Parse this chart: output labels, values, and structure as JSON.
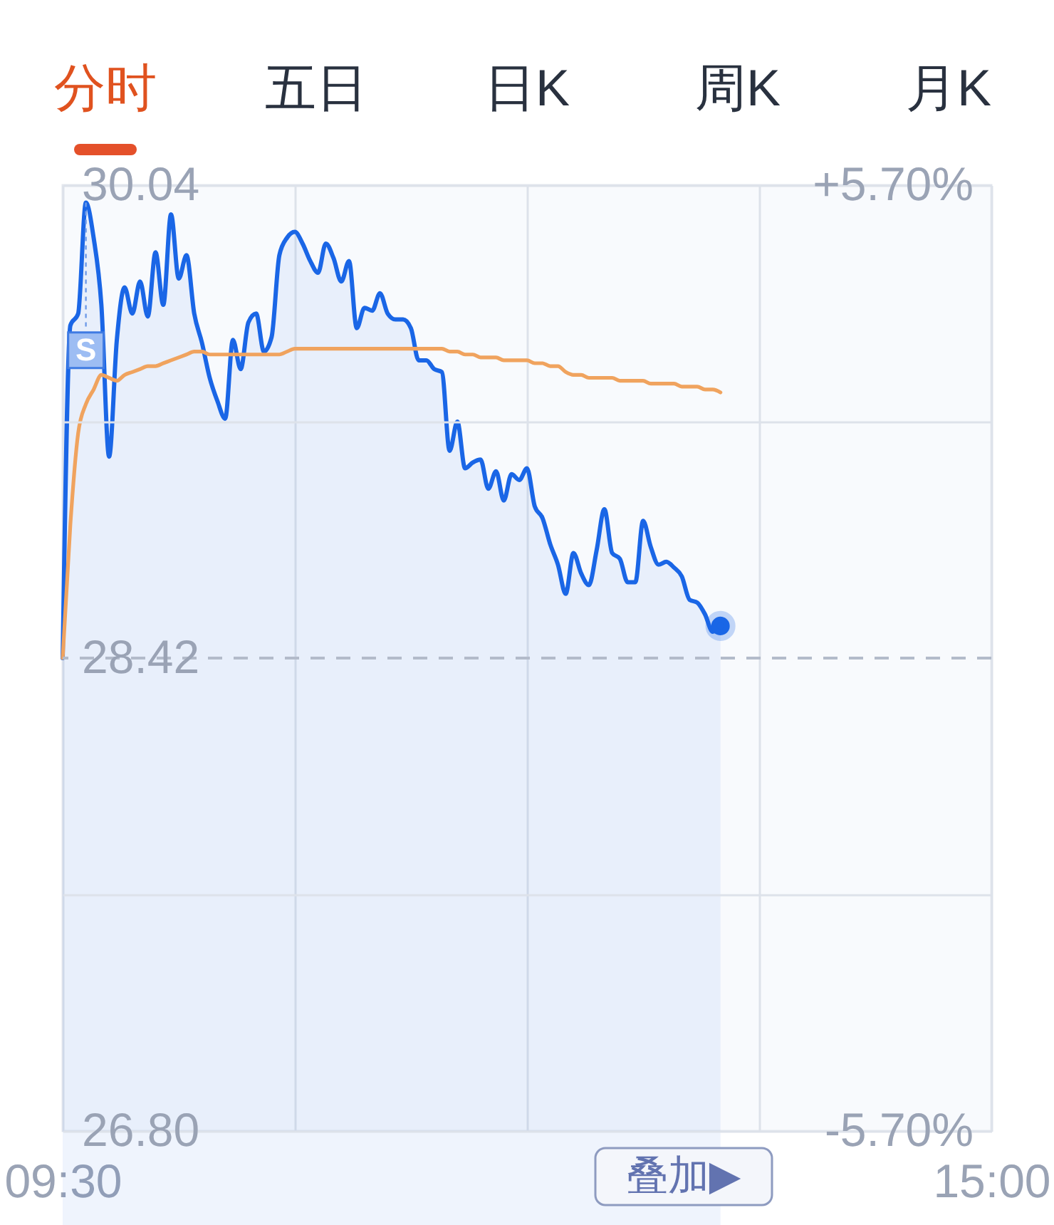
{
  "chart_data": [
    {
      "type": "other",
      "annotations": [
        "分时",
        "五日",
        "日K",
        "周K",
        "月K"
      ]
    },
    {
      "type": "area",
      "categories": [
        "09:30",
        null,
        null,
        null,
        null,
        null,
        null,
        null,
        null,
        null,
        null,
        null,
        null,
        null,
        null,
        null,
        null,
        null,
        null,
        null,
        null,
        null,
        null,
        null,
        null,
        null,
        null,
        null,
        null,
        null,
        null,
        null,
        null,
        null,
        null,
        null,
        null,
        null,
        null,
        null,
        null,
        null,
        null,
        null,
        null,
        null,
        null,
        null,
        null,
        null,
        null,
        null,
        null,
        null,
        null,
        null,
        null,
        null,
        null,
        null,
        null,
        null,
        null,
        null,
        null,
        null,
        null,
        null,
        null,
        null,
        null,
        null,
        null,
        null,
        null,
        null,
        null,
        null,
        null,
        null,
        null,
        null,
        null,
        null,
        null,
        null,
        null,
        null,
        null,
        null,
        null,
        null,
        null,
        null,
        null,
        null,
        null,
        null,
        null,
        null,
        null,
        null,
        null,
        null,
        null,
        null,
        null,
        null,
        null,
        null,
        null,
        null,
        null,
        null,
        null,
        null,
        null,
        null,
        null,
        null,
        "15:00"
      ],
      "series": [
        {
          "type": "area",
          "color": "#1a66e6",
          "values": [
            28.42,
            29.56,
            29.6,
            29.98,
            29.86,
            29.63,
            29.11,
            29.51,
            29.69,
            29.6,
            29.71,
            29.59,
            29.81,
            29.63,
            29.94,
            29.72,
            29.8,
            29.6,
            29.5,
            29.38,
            29.3,
            29.24,
            29.51,
            29.41,
            29.57,
            29.6,
            29.47,
            29.52,
            29.8,
            29.86,
            29.88,
            29.84,
            29.78,
            29.74,
            29.84,
            29.79,
            29.71,
            29.78,
            29.55,
            29.62,
            29.61,
            29.67,
            29.6,
            29.58,
            29.58,
            29.55,
            29.44,
            29.44,
            29.41,
            29.4,
            29.13,
            29.23,
            29.07,
            29.09,
            29.1,
            29.0,
            29.06,
            28.96,
            29.05,
            29.03,
            29.07,
            28.94,
            28.9,
            28.81,
            28.74,
            28.64,
            28.78,
            28.71,
            28.67,
            28.79,
            28.93,
            28.78,
            28.76,
            28.68,
            28.68,
            28.89,
            28.8,
            28.74,
            28.75,
            28.73,
            28.7,
            28.62,
            28.61,
            28.57,
            28.51,
            28.53,
            null,
            null,
            null,
            null,
            null,
            null,
            null,
            null,
            null,
            null,
            null,
            null,
            null,
            null,
            null,
            null,
            null,
            null,
            null,
            null,
            null,
            null,
            null,
            null,
            null,
            null,
            null,
            null,
            null,
            null,
            null,
            null,
            null,
            null,
            null
          ]
        },
        {
          "type": "line",
          "color": "#f0a35e",
          "values": [
            28.42,
            28.88,
            29.19,
            29.29,
            29.34,
            29.39,
            29.38,
            29.37,
            29.39,
            29.4,
            29.41,
            29.42,
            29.42,
            29.43,
            29.44,
            29.45,
            29.46,
            29.47,
            29.47,
            29.46,
            29.46,
            29.46,
            29.46,
            29.46,
            29.46,
            29.46,
            29.46,
            29.46,
            29.46,
            29.47,
            29.48,
            29.48,
            29.48,
            29.48,
            29.48,
            29.48,
            29.48,
            29.48,
            29.48,
            29.48,
            29.48,
            29.48,
            29.48,
            29.48,
            29.48,
            29.48,
            29.48,
            29.48,
            29.48,
            29.48,
            29.47,
            29.47,
            29.46,
            29.46,
            29.45,
            29.45,
            29.45,
            29.44,
            29.44,
            29.44,
            29.44,
            29.43,
            29.43,
            29.42,
            29.42,
            29.4,
            29.39,
            29.39,
            29.38,
            29.38,
            29.38,
            29.38,
            29.37,
            29.37,
            29.37,
            29.37,
            29.36,
            29.36,
            29.36,
            29.36,
            29.35,
            29.35,
            29.35,
            29.34,
            29.34,
            29.33,
            null,
            null,
            null,
            null,
            null,
            null,
            null,
            null,
            null,
            null,
            null,
            null,
            null,
            null,
            null,
            null,
            null,
            null,
            null,
            null,
            null,
            null,
            null,
            null,
            null,
            null,
            null,
            null,
            null,
            null,
            null,
            null,
            null,
            null,
            null
          ]
        },
        {
          "type": "scatter",
          "color": "#1a66e6",
          "values": [
            null,
            null,
            null,
            null,
            null,
            null,
            null,
            null,
            null,
            null,
            null,
            null,
            null,
            null,
            null,
            null,
            null,
            null,
            null,
            null,
            null,
            null,
            null,
            null,
            null,
            null,
            null,
            null,
            null,
            null,
            null,
            null,
            null,
            null,
            null,
            null,
            null,
            null,
            null,
            null,
            null,
            null,
            null,
            null,
            null,
            null,
            null,
            null,
            null,
            null,
            null,
            null,
            null,
            null,
            null,
            null,
            null,
            null,
            null,
            null,
            null,
            null,
            null,
            null,
            null,
            null,
            null,
            null,
            null,
            null,
            null,
            null,
            null,
            null,
            null,
            null,
            null,
            null,
            null,
            null,
            null,
            null,
            null,
            null,
            null,
            28.53,
            null,
            null,
            null,
            null,
            null,
            null,
            null,
            null,
            null,
            null,
            null,
            null,
            null,
            null,
            null,
            null,
            null,
            null,
            null,
            null,
            null,
            null,
            null,
            null,
            null,
            null,
            null,
            null,
            null,
            null,
            null,
            null,
            null,
            null,
            null
          ]
        }
      ],
      "ylim": [
        26.8,
        30.04
      ],
      "yticks": [
        30.04,
        {
          "value": 29.23,
          "label": null
        },
        28.42,
        {
          "value": 27.61,
          "label": null
        },
        {
          "value": 26.8,
          "label": "26.80"
        }
      ],
      "y2lim": [
        -5.7,
        5.7
      ],
      "y2ticks": [
        {
          "value": 5.7,
          "label": "+5.70%"
        },
        {
          "value": -5.7,
          "label": "-5.70%"
        }
      ],
      "grid": true,
      "ref_lines": [
        {
          "axis": "y",
          "value": 28.42,
          "color": "#b3bbca",
          "line_style": "dashed"
        }
      ],
      "annotations": [
        {
          "text": "S",
          "y": 29.98
        },
        "叠加▶"
      ]
    }
  ]
}
